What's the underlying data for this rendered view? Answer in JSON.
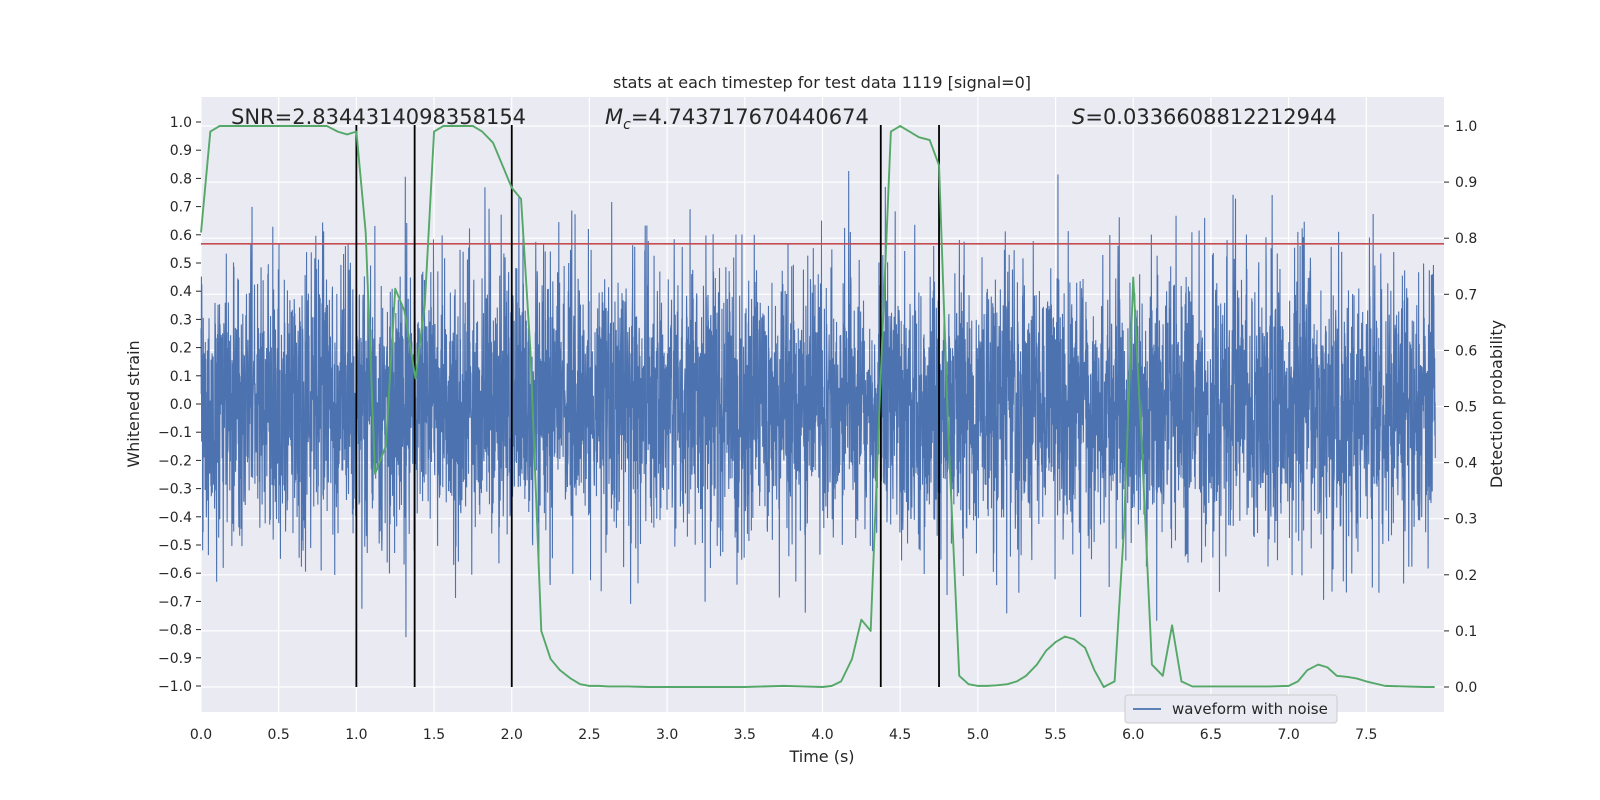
{
  "chart_data": {
    "type": "line",
    "title": "stats at each timestep for test data 1119 [signal=0]",
    "xlabel": "Time (s)",
    "ylabel": "Whitened strain",
    "ylabel_right": "Detection probability",
    "xlim": [
      0,
      8
    ],
    "ylim": [
      -1.1,
      1.1
    ],
    "ylim_right": [
      -0.05,
      1.05
    ],
    "x_ticks": [
      "0.0",
      "0.5",
      "1.0",
      "1.5",
      "2.0",
      "2.5",
      "3.0",
      "3.5",
      "4.0",
      "4.5",
      "5.0",
      "5.5",
      "6.0",
      "6.5",
      "7.0",
      "7.5"
    ],
    "y_ticks": [
      "1.0",
      "0.9",
      "0.8",
      "0.7",
      "0.6",
      "0.5",
      "0.4",
      "0.3",
      "0.2",
      "0.1",
      "0.0",
      "−0.1",
      "−0.2",
      "−0.3",
      "−0.4",
      "−0.5",
      "−0.6",
      "−0.7",
      "−0.8",
      "−0.9",
      "−1.0"
    ],
    "y_right_ticks": [
      "1.0",
      "0.9",
      "0.8",
      "0.7",
      "0.6",
      "0.5",
      "0.4",
      "0.3",
      "0.2",
      "0.1",
      "0.0"
    ],
    "annotations": {
      "snr": "SNR=2.8344314098358154",
      "mc_symbol": "M",
      "mc_sub": "c",
      "mc_value": "=4.743717670440674",
      "s_symbol": "S",
      "s_value": "=0.0336608812212944"
    },
    "legend": {
      "entries": [
        "waveform with noise"
      ],
      "location": "lower-right"
    },
    "threshold": 0.79,
    "vertical_lines": [
      1.0,
      1.375,
      2.0,
      4.375,
      4.75
    ],
    "series": [
      {
        "name": "waveform with noise",
        "color": "#4c72b0",
        "axis": "left",
        "generator": "pseudo-random whitened noise, 6000 samples over 0-8 s, peaks up to ~1.0",
        "sample_count": 6000
      },
      {
        "name": "Detection probability",
        "color": "#55a868",
        "axis": "right",
        "x": [
          0.0,
          0.06,
          0.12,
          0.19,
          0.25,
          0.31,
          0.38,
          0.44,
          0.5,
          0.56,
          0.62,
          0.69,
          0.75,
          0.81,
          0.88,
          0.94,
          1.0,
          1.06,
          1.12,
          1.19,
          1.25,
          1.31,
          1.38,
          1.44,
          1.5,
          1.56,
          1.62,
          1.69,
          1.75,
          1.81,
          1.88,
          1.94,
          2.0,
          2.06,
          2.12,
          2.19,
          2.25,
          2.31,
          2.38,
          2.44,
          2.5,
          2.56,
          2.62,
          2.75,
          2.88,
          3.0,
          3.25,
          3.5,
          3.75,
          3.88,
          4.0,
          4.06,
          4.12,
          4.19,
          4.25,
          4.31,
          4.38,
          4.44,
          4.5,
          4.56,
          4.62,
          4.69,
          4.75,
          4.81,
          4.88,
          4.94,
          5.0,
          5.06,
          5.12,
          5.19,
          5.25,
          5.31,
          5.38,
          5.44,
          5.5,
          5.56,
          5.62,
          5.69,
          5.75,
          5.81,
          5.88,
          5.94,
          6.0,
          6.06,
          6.12,
          6.19,
          6.25,
          6.31,
          6.38,
          6.44,
          6.5,
          6.62,
          6.75,
          6.88,
          7.0,
          7.06,
          7.12,
          7.19,
          7.25,
          7.31,
          7.38,
          7.44,
          7.5,
          7.62,
          7.75,
          7.88,
          7.94
        ],
        "values": [
          0.81,
          0.99,
          1.0,
          1.0,
          1.0,
          1.0,
          1.0,
          1.0,
          1.0,
          1.0,
          1.0,
          1.0,
          1.0,
          1.0,
          0.99,
          0.985,
          0.99,
          0.81,
          0.38,
          0.43,
          0.71,
          0.67,
          0.55,
          0.68,
          0.99,
          1.0,
          1.0,
          1.0,
          1.0,
          0.99,
          0.97,
          0.93,
          0.89,
          0.87,
          0.6,
          0.1,
          0.05,
          0.03,
          0.015,
          0.005,
          0.002,
          0.002,
          0.001,
          0.001,
          0.0,
          0.0,
          0.0,
          0.0,
          0.002,
          0.001,
          0.0,
          0.002,
          0.01,
          0.05,
          0.12,
          0.1,
          0.59,
          0.99,
          1.0,
          0.99,
          0.98,
          0.975,
          0.93,
          0.45,
          0.02,
          0.005,
          0.002,
          0.002,
          0.003,
          0.005,
          0.01,
          0.02,
          0.04,
          0.065,
          0.08,
          0.09,
          0.085,
          0.07,
          0.03,
          0.0,
          0.01,
          0.28,
          0.73,
          0.4,
          0.04,
          0.02,
          0.11,
          0.01,
          0.001,
          0.001,
          0.001,
          0.001,
          0.001,
          0.001,
          0.002,
          0.01,
          0.03,
          0.04,
          0.035,
          0.02,
          0.018,
          0.015,
          0.01,
          0.002,
          0.001,
          0.0,
          0.0
        ]
      }
    ]
  }
}
